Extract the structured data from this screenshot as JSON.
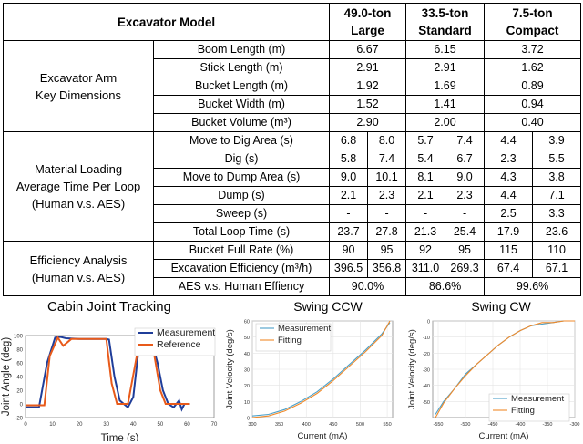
{
  "table": {
    "header": {
      "model_label": "Excavator Model",
      "models": [
        {
          "line1": "49.0-ton",
          "line2": "Large"
        },
        {
          "line1": "33.5-ton",
          "line2": "Standard"
        },
        {
          "line1": "7.5-ton",
          "line2": "Compact"
        }
      ]
    },
    "arm_group": {
      "label_line1": "Excavator Arm",
      "label_line2": "Key Dimensions",
      "rows": [
        {
          "label": "Boom Length (m)",
          "values": [
            "6.67",
            "6.15",
            "3.72"
          ]
        },
        {
          "label": "Stick Length (m)",
          "values": [
            "2.91",
            "2.91",
            "1.62"
          ]
        },
        {
          "label": "Bucket Length (m)",
          "values": [
            "1.92",
            "1.69",
            "0.89"
          ]
        },
        {
          "label": "Bucket Width (m)",
          "values": [
            "1.52",
            "1.41",
            "0.94"
          ]
        },
        {
          "label": "Bucket Volume (m³)",
          "values": [
            "2.90",
            "2.00",
            "0.40"
          ]
        }
      ]
    },
    "loading_group": {
      "label_line1": "Material Loading",
      "label_line2": "Average Time Per Loop",
      "label_line3": "(Human v.s. AES)",
      "rows": [
        {
          "label": "Move to Dig Area (s)",
          "values": [
            "6.8",
            "8.0",
            "5.7",
            "7.4",
            "4.4",
            "3.9"
          ]
        },
        {
          "label": "Dig (s)",
          "values": [
            "5.8",
            "7.4",
            "5.4",
            "6.7",
            "2.3",
            "5.5"
          ]
        },
        {
          "label": "Move to Dump Area (s)",
          "values": [
            "9.0",
            "10.1",
            "8.1",
            "9.0",
            "4.3",
            "3.8"
          ]
        },
        {
          "label": "Dump (s)",
          "values": [
            "2.1",
            "2.3",
            "2.1",
            "2.3",
            "4.4",
            "7.1"
          ]
        },
        {
          "label": "Sweep (s)",
          "values": [
            "-",
            "-",
            "-",
            "-",
            "2.5",
            "3.3"
          ]
        },
        {
          "label": "Total Loop Time (s)",
          "values": [
            "23.7",
            "27.8",
            "21.3",
            "25.4",
            "17.9",
            "23.6"
          ]
        }
      ]
    },
    "efficiency_group": {
      "label_line1": "Efficiency Analysis",
      "label_line2": "(Human v.s. AES)",
      "rows": [
        {
          "label": "Bucket Full Rate (%)",
          "values": [
            "90",
            "95",
            "92",
            "95",
            "115",
            "110"
          ]
        },
        {
          "label": "Excavation Efficiency (m³/h)",
          "values": [
            "396.5",
            "356.8",
            "311.0",
            "269.3",
            "67.4",
            "67.1"
          ]
        }
      ],
      "ratio_row": {
        "label": "AES v.s. Human Effiency",
        "values": [
          "90.0%",
          "86.6%",
          "99.6%"
        ]
      }
    }
  },
  "chart_data": [
    {
      "type": "line",
      "title": "Cabin Joint Tracking",
      "xlabel": "Time (s)",
      "ylabel": "Joint Angle (deg)",
      "xlim": [
        0,
        70
      ],
      "ylim": [
        -20,
        100
      ],
      "xticks": [
        "0",
        "10",
        "20",
        "30",
        "40",
        "50",
        "60",
        "70"
      ],
      "yticks": [
        "-20",
        "0",
        "20",
        "40",
        "60",
        "80",
        "100"
      ],
      "legend": "top-right",
      "series": [
        {
          "name": "Measurement",
          "color": "#1f3d99",
          "x": [
            0,
            5,
            8,
            11,
            13,
            15,
            20,
            25,
            30,
            31,
            33,
            35,
            38,
            40,
            42,
            45,
            47,
            49,
            51,
            53,
            55,
            57,
            58,
            59,
            60,
            61
          ],
          "y": [
            -5,
            -5,
            60,
            97,
            98,
            96,
            95,
            95,
            95,
            94,
            40,
            5,
            -5,
            10,
            80,
            90,
            89,
            60,
            20,
            0,
            -5,
            5,
            -8,
            0,
            0,
            0
          ]
        },
        {
          "name": "Reference",
          "color": "#e85a1a",
          "x": [
            0,
            7,
            9,
            12,
            14,
            17,
            30,
            32,
            34,
            38,
            42,
            44,
            47,
            50,
            52,
            55,
            58,
            61
          ],
          "y": [
            -2,
            -2,
            70,
            97,
            85,
            95,
            95,
            30,
            0,
            0,
            85,
            80,
            90,
            20,
            0,
            0,
            0,
            0
          ]
        }
      ]
    },
    {
      "type": "line",
      "title": "Swing CCW",
      "xlabel": "Current (mA)",
      "ylabel": "Joint Velocity (deg/s)",
      "xlim": [
        300,
        560
      ],
      "ylim": [
        0,
        60
      ],
      "xticks": [
        "300",
        "350",
        "400",
        "450",
        "500",
        "550"
      ],
      "yticks": [
        "0",
        "10",
        "20",
        "30",
        "40",
        "50",
        "60"
      ],
      "legend": "top-left",
      "series": [
        {
          "name": "Measurement",
          "color": "#4a9fc8",
          "x": [
            300,
            330,
            360,
            390,
            420,
            450,
            480,
            510,
            540,
            555
          ],
          "y": [
            1,
            2,
            5,
            10,
            16,
            24,
            33,
            42,
            52,
            59
          ]
        },
        {
          "name": "Fitting",
          "color": "#f08a2a",
          "x": [
            300,
            330,
            360,
            390,
            420,
            450,
            480,
            510,
            540,
            555
          ],
          "y": [
            0,
            1,
            4,
            9,
            15,
            23,
            32,
            41,
            51,
            60
          ]
        }
      ]
    },
    {
      "type": "line",
      "title": "Swing CW",
      "xlabel": "Current (mA)",
      "ylabel": "Joint Velocity (deg/s)",
      "xlim": [
        -560,
        -300
      ],
      "ylim": [
        -60,
        0
      ],
      "xticks": [
        "-550",
        "-500",
        "-450",
        "-400",
        "-350",
        "-300"
      ],
      "yticks": [
        "-50",
        "-40",
        "-30",
        "-20",
        "-10",
        "0"
      ],
      "legend": "bottom-right",
      "series": [
        {
          "name": "Measurement",
          "color": "#4a9fc8",
          "x": [
            -555,
            -540,
            -520,
            -500,
            -480,
            -460,
            -440,
            -420,
            -400,
            -380,
            -360,
            -340,
            -320,
            -300
          ],
          "y": [
            -58,
            -50,
            -42,
            -33,
            -27,
            -21,
            -15,
            -10,
            -6,
            -3,
            -2,
            -1,
            0,
            0
          ]
        },
        {
          "name": "Fitting",
          "color": "#f08a2a",
          "x": [
            -555,
            -540,
            -520,
            -500,
            -480,
            -460,
            -440,
            -420,
            -400,
            -380,
            -360,
            -340,
            -320,
            -300
          ],
          "y": [
            -60,
            -51,
            -42,
            -34,
            -27,
            -21,
            -15,
            -10,
            -6,
            -3,
            -1,
            -1,
            0,
            0
          ]
        }
      ]
    }
  ]
}
